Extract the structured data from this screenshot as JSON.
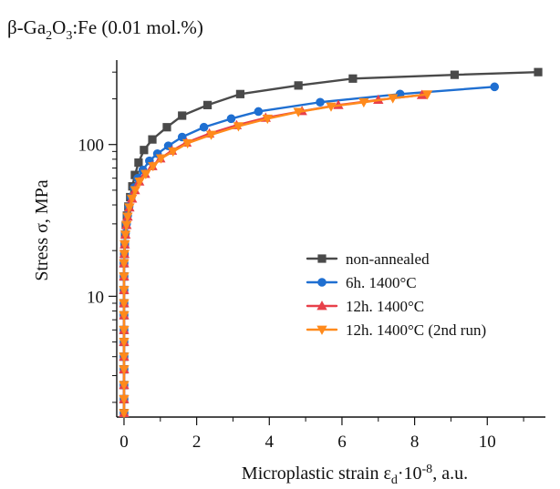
{
  "chart_data": {
    "type": "line",
    "title": {
      "prefix": "β-Ga",
      "sub1": "2",
      "mid": "O",
      "sub2": "3",
      "suffix": ":Fe (0.01 mol.%)"
    },
    "xlabel": {
      "prefix": "Microplastic strain ε",
      "sub": "d",
      "mid": "·10",
      "sup": "-8",
      "suffix": ", a.u."
    },
    "ylabel": "Stress σ, MPa",
    "xlim": [
      -0.2,
      11.6
    ],
    "ylim": [
      1.6,
      360
    ],
    "yscale": "log",
    "xticks": [
      0,
      2,
      4,
      6,
      8,
      10
    ],
    "xtick_labels": [
      "0",
      "2",
      "4",
      "6",
      "8",
      "10"
    ],
    "yticks": [
      10,
      100
    ],
    "ytick_labels": [
      "10",
      "100"
    ],
    "grid": false,
    "legend_position": "center-right",
    "series": [
      {
        "name": "non-annealed",
        "color": "#4a4a4a",
        "marker": "square",
        "x": [
          0,
          0,
          0,
          0,
          0,
          0,
          0,
          0,
          0,
          0,
          0,
          0,
          0.01,
          0.02,
          0.03,
          0.05,
          0.08,
          0.12,
          0.17,
          0.23,
          0.3,
          0.4,
          0.55,
          0.78,
          1.18,
          1.6,
          2.3,
          3.2,
          4.8,
          6.3,
          9.1,
          11.4
        ],
        "y": [
          1.7,
          2.1,
          2.6,
          3.3,
          4.0,
          5.0,
          6.0,
          7.5,
          9.0,
          11.0,
          13.5,
          16.5,
          19,
          22,
          25.5,
          29.5,
          34,
          39,
          45,
          53,
          63,
          76,
          92,
          108,
          130,
          155,
          182,
          215,
          245,
          272,
          288,
          300
        ]
      },
      {
        "name": "6h. 1400°C",
        "color": "#1f6fd1",
        "marker": "circle",
        "x": [
          0,
          0,
          0,
          0,
          0,
          0,
          0,
          0,
          0,
          0,
          0,
          0,
          0.01,
          0.02,
          0.04,
          0.07,
          0.1,
          0.14,
          0.2,
          0.28,
          0.38,
          0.52,
          0.7,
          0.92,
          1.22,
          1.6,
          2.2,
          2.95,
          3.7,
          5.4,
          7.6,
          10.2
        ],
        "y": [
          1.7,
          2.1,
          2.6,
          3.3,
          4.0,
          5.0,
          6.0,
          7.5,
          9.0,
          11.0,
          13.5,
          16.5,
          19,
          22,
          26,
          30,
          34,
          39,
          45,
          52,
          60,
          68,
          78,
          87,
          98,
          112,
          130,
          148,
          165,
          190,
          215,
          240
        ]
      },
      {
        "name": "12h. 1400°C",
        "color": "#e8404a",
        "marker": "triangle-up",
        "x": [
          0,
          0,
          0,
          0,
          0,
          0,
          0,
          0,
          0,
          0,
          0,
          0,
          0.01,
          0.02,
          0.04,
          0.07,
          0.1,
          0.15,
          0.22,
          0.3,
          0.42,
          0.58,
          0.78,
          1.0,
          1.32,
          1.72,
          2.35,
          3.1,
          3.9,
          4.9,
          5.9,
          7.0,
          8.2
        ],
        "y": [
          1.7,
          2.1,
          2.6,
          3.3,
          4.0,
          5.0,
          6.0,
          7.5,
          9.0,
          11.0,
          13.5,
          16.5,
          19,
          22,
          25.5,
          29.5,
          33.5,
          38.5,
          44,
          50,
          57,
          64,
          72,
          81,
          91,
          103,
          118,
          134,
          150,
          166,
          182,
          197,
          212
        ]
      },
      {
        "name": "12h. 1400°C (2nd run)",
        "color": "#ff8a1c",
        "marker": "triangle-down",
        "x": [
          0,
          0,
          0,
          0,
          0,
          0,
          0,
          0,
          0,
          0,
          0,
          0,
          0.01,
          0.02,
          0.04,
          0.07,
          0.1,
          0.15,
          0.22,
          0.31,
          0.43,
          0.6,
          0.8,
          1.02,
          1.35,
          1.75,
          2.4,
          3.15,
          3.95,
          4.8,
          5.7,
          6.6,
          7.4,
          8.35
        ],
        "y": [
          1.7,
          2.1,
          2.6,
          3.3,
          4.0,
          5.0,
          6.0,
          7.5,
          9.0,
          11.0,
          13.5,
          16.5,
          19,
          22,
          25.5,
          29.5,
          33.5,
          38.5,
          44,
          50,
          57,
          64,
          72,
          81,
          90,
          102,
          116,
          132,
          148,
          164,
          178,
          190,
          202,
          214
        ]
      }
    ]
  }
}
